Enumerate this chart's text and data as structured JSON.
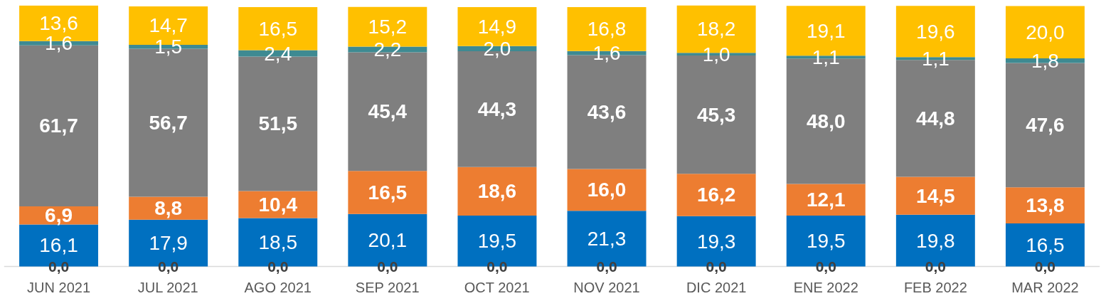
{
  "chart_data": {
    "type": "bar",
    "stacked": true,
    "categories": [
      "JUN 2021",
      "JUL 2021",
      "AGO 2021",
      "SEP 2021",
      "OCT 2021",
      "NOV 2021",
      "DIC 2021",
      "ENE 2022",
      "FEB 2022",
      "MAR 2022"
    ],
    "series": [
      {
        "color": "#0070c0",
        "values": [
          16.1,
          17.9,
          18.5,
          20.1,
          19.5,
          21.3,
          19.3,
          19.5,
          19.8,
          16.5
        ],
        "value_labels": [
          "16,1",
          "17,9",
          "18,5",
          "20,1",
          "19,5",
          "21,3",
          "19,3",
          "19,5",
          "19,8",
          "16,5"
        ]
      },
      {
        "color": "#ed7d31",
        "values": [
          6.9,
          8.8,
          10.4,
          16.5,
          18.6,
          16.0,
          16.2,
          12.1,
          14.5,
          13.8
        ],
        "value_labels": [
          "6,9",
          "8,8",
          "10,4",
          "16,5",
          "18,6",
          "16,0",
          "16,2",
          "12,1",
          "14,5",
          "13,8"
        ]
      },
      {
        "color": "#7f7f7f",
        "values": [
          61.7,
          56.7,
          51.5,
          45.4,
          44.3,
          43.6,
          45.3,
          48.0,
          44.8,
          47.6
        ],
        "value_labels": [
          "61,7",
          "56,7",
          "51,5",
          "45,4",
          "44,3",
          "43,6",
          "45,3",
          "48,0",
          "44,8",
          "47,6"
        ]
      },
      {
        "color": "#3e8a92",
        "values": [
          1.6,
          1.5,
          2.4,
          2.2,
          2.0,
          1.6,
          1.0,
          1.1,
          1.1,
          1.8
        ],
        "value_labels": [
          "1,6",
          "1,5",
          "2,4",
          "2,2",
          "2,0",
          "1,6",
          "1,0",
          "1,1",
          "1,1",
          "1,8"
        ]
      },
      {
        "color": "#ffc000",
        "values": [
          13.6,
          14.7,
          16.5,
          15.2,
          14.9,
          16.8,
          18.2,
          19.1,
          19.6,
          20.0
        ],
        "value_labels": [
          "13,6",
          "14,7",
          "16,5",
          "15,2",
          "14,9",
          "16,8",
          "18,2",
          "19,1",
          "19,6",
          "20,0"
        ]
      }
    ],
    "annotations": [
      {
        "text": "0,0",
        "x": "JUN 2021",
        "y": 0
      },
      {
        "text": "0,0",
        "x": "JUL 2021",
        "y": 0
      },
      {
        "text": "0,0",
        "x": "AGO 2021",
        "y": 0
      },
      {
        "text": "0,0",
        "x": "SEP 2021",
        "y": 0
      },
      {
        "text": "0,0",
        "x": "OCT 2021",
        "y": 0
      },
      {
        "text": "0,0",
        "x": "NOV 2021",
        "y": 0
      },
      {
        "text": "0,0",
        "x": "DIC 2021",
        "y": 0
      },
      {
        "text": "0,0",
        "x": "ENE 2022",
        "y": 0
      },
      {
        "text": "0,0",
        "x": "FEB 2022",
        "y": 0
      },
      {
        "text": "0,0",
        "x": "MAR 2022",
        "y": 0
      }
    ]
  }
}
